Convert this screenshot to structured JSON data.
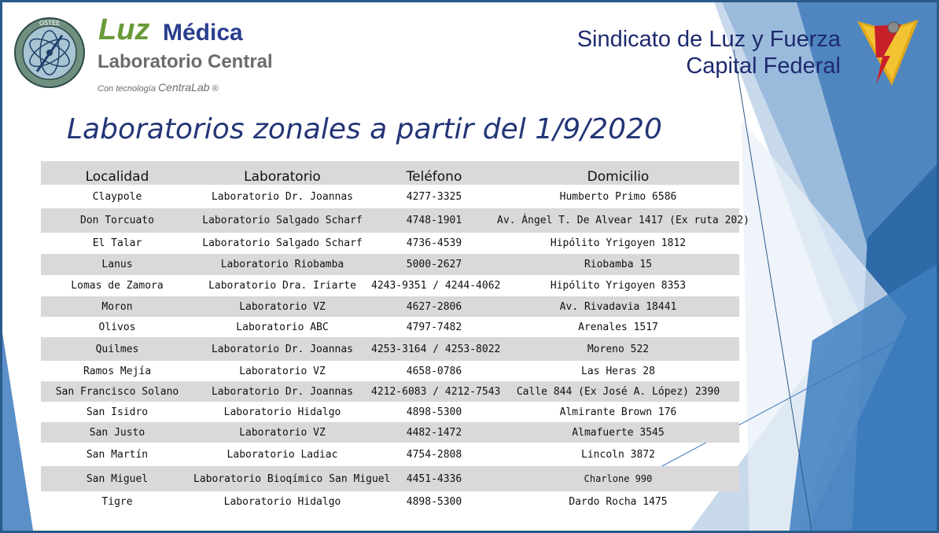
{
  "header": {
    "brand_luz": "Luz",
    "brand_medica": "Médica",
    "brand_lab": "Laboratorio Central",
    "brand_tech_prefix": "Con tecnología",
    "brand_tech_name": "CentraLab",
    "brand_tech_mark": "®",
    "seal_text": "OSTEE",
    "union_line1": "Sindicato de Luz y Fuerza",
    "union_line2": "Capital Federal"
  },
  "title": "Laboratorios zonales a partir del 1/9/2020",
  "table": {
    "headers": [
      "Localidad",
      "Laboratorio",
      "Teléfono",
      "Domicilio"
    ],
    "rows": [
      [
        "Claypole",
        "Laboratorio Dr. Joannas",
        "4277-3325",
        "Humberto Primo 6586"
      ],
      [
        "Don Torcuato",
        "Laboratorio Salgado Scharf",
        "4748-1901",
        "Av. Ángel T. De Alvear 1417 (Ex ruta 202)"
      ],
      [
        "El Talar",
        "Laboratorio Salgado Scharf",
        "4736-4539",
        "Hipólito Yrigoyen 1812"
      ],
      [
        "Lanus",
        "Laboratorio Riobamba",
        "5000-2627",
        "Riobamba 15"
      ],
      [
        "Lomas de Zamora",
        "Laboratorio Dra. Iriarte",
        "4243-9351 / 4244-4062",
        "Hipólito Yrigoyen 8353"
      ],
      [
        "Moron",
        "Laboratorio VZ",
        "4627-2806",
        "Av. Rivadavia 18441"
      ],
      [
        "Olivos",
        "Laboratorio ABC",
        "4797-7482",
        "Arenales 1517"
      ],
      [
        "Quilmes",
        "Laboratorio Dr. Joannas",
        "4253-3164 / 4253-8022",
        "Moreno 522"
      ],
      [
        "Ramos Mejía",
        "Laboratorio VZ",
        "4658-0786",
        "Las Heras 28"
      ],
      [
        "San Francisco Solano",
        "Laboratorio Dr. Joannas",
        "4212-6083 / 4212-7543",
        "Calle 844 (Ex José A. López) 2390"
      ],
      [
        "San Isidro",
        "Laboratorio Hidalgo",
        "4898-5300",
        "Almirante Brown 176"
      ],
      [
        "San Justo",
        "Laboratorio VZ",
        "4482-1472",
        "Almafuerte 3545"
      ],
      [
        "San Martín",
        "Laboratorio Ladiac",
        "4754-2808",
        "Lincoln 3872"
      ],
      [
        "San Miguel",
        "Laboratorio Bioqímico San Miguel",
        "4451-4336",
        "Charlone 990"
      ],
      [
        "Tigre",
        "Laboratorio Hidalgo",
        "4898-5300",
        "Dardo Rocha 1475"
      ]
    ]
  },
  "colors": {
    "title": "#243576",
    "brand_green": "#6a9a3a",
    "brand_blue": "#2a3e8e",
    "brand_gray": "#6b6b6b",
    "shade": "#d9d9d9",
    "accent_blue": "#3a78b8"
  }
}
